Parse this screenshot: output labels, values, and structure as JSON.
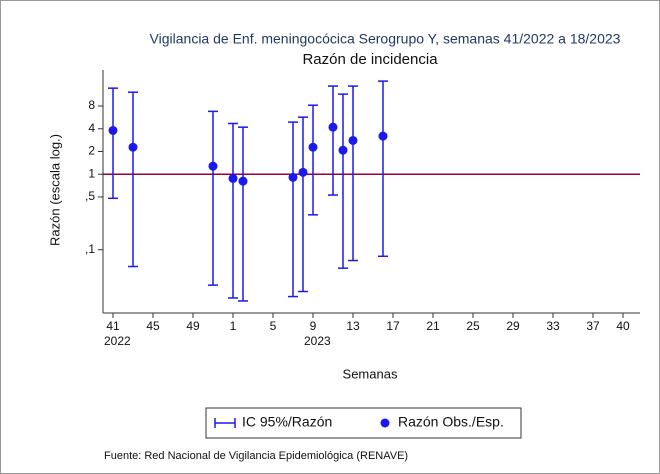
{
  "chart_data": {
    "type": "errorbar-scatter",
    "title": "Vigilancia de Enf. meningocócica Serogrupo Y, semanas 41/2022 a 18/2023",
    "subtitle": "Razón de incidencia",
    "y_label": "Razón (escala log.)",
    "x_label": "Semanas",
    "source": "Fuente: Red Nacional de Vigilancia Epidemiológica (RENAVE)",
    "categories": [
      "41",
      null,
      null,
      null,
      "45",
      null,
      null,
      null,
      "49",
      null,
      null,
      null,
      "1",
      null,
      null,
      null,
      "5",
      null,
      null,
      null,
      "9",
      null,
      null,
      null,
      "13",
      null,
      null,
      null,
      "17",
      null,
      null,
      null,
      "21",
      null,
      null,
      null,
      "25",
      null,
      null,
      null,
      "29",
      null,
      null,
      null,
      "33",
      null,
      null,
      null,
      "37",
      null,
      null,
      "40"
    ],
    "x_sublabels": [
      {
        "index": 0,
        "label": "2022"
      },
      {
        "index": 20,
        "label": "2023"
      }
    ],
    "series": [
      {
        "name": "Razón Obs./Esp.",
        "interval_name": "IC 95%/Razón",
        "color": "#1a1aee",
        "values": [
          3.8,
          null,
          2.28,
          null,
          null,
          null,
          null,
          null,
          null,
          null,
          1.28,
          null,
          0.88,
          0.81,
          null,
          null,
          null,
          null,
          0.91,
          1.06,
          2.28,
          null,
          4.2,
          2.08,
          2.8,
          null,
          null,
          3.2,
          null,
          null,
          null,
          null,
          null,
          null,
          null,
          null,
          null,
          null,
          null,
          null,
          null,
          null,
          null,
          null,
          null,
          null,
          null,
          null,
          null,
          null,
          null,
          null
        ],
        "lower": [
          0.48,
          null,
          0.06,
          null,
          null,
          null,
          null,
          null,
          null,
          null,
          0.034,
          null,
          0.023,
          0.021,
          null,
          null,
          null,
          null,
          0.024,
          0.028,
          0.29,
          null,
          0.53,
          0.057,
          0.072,
          null,
          null,
          0.082,
          null,
          null,
          null,
          null,
          null,
          null,
          null,
          null,
          null,
          null,
          null,
          null,
          null,
          null,
          null,
          null,
          null,
          null,
          null,
          null,
          null,
          null,
          null,
          null
        ],
        "upper": [
          13.8,
          null,
          12.2,
          null,
          null,
          null,
          null,
          null,
          null,
          null,
          6.8,
          null,
          4.7,
          4.2,
          null,
          null,
          null,
          null,
          4.9,
          5.7,
          8.2,
          null,
          14.7,
          11.5,
          14.7,
          null,
          null,
          17.1,
          null,
          null,
          null,
          null,
          null,
          null,
          null,
          null,
          null,
          null,
          null,
          null,
          null,
          null,
          null,
          null,
          null,
          null,
          null,
          null,
          null,
          null,
          null,
          null
        ]
      }
    ],
    "reference_line": {
      "value": 1,
      "color": "#990033"
    },
    "log_y": true,
    "ylim": [
      0.018,
      24
    ],
    "yticks": [
      8,
      4,
      2,
      1,
      {
        "value": 0.5,
        "label": ",5"
      },
      {
        "value": 0.1,
        "label": ",1"
      }
    ]
  }
}
